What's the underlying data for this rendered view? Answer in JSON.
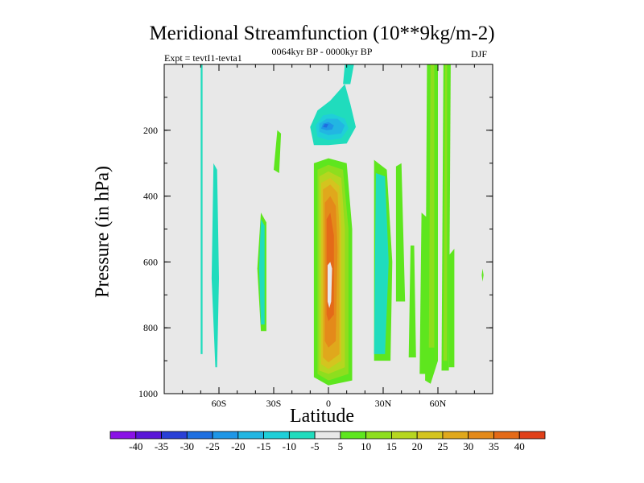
{
  "chart_data": {
    "type": "heatmap",
    "title": "Meridional Streamfunction (10**9kg/m-2)",
    "left_string": "Expt = tevtI1-tevta1",
    "center_string": "0064kyr BP - 0000kyr BP",
    "right_string": "DJF",
    "xlabel": "Latitude",
    "ylabel": "Pressure (in hPa)",
    "xlim": [
      -90,
      90
    ],
    "ylim": [
      1000,
      0
    ],
    "x_ticks": [
      {
        "value": -60,
        "label": "60S"
      },
      {
        "value": -30,
        "label": "30S"
      },
      {
        "value": 0,
        "label": "0"
      },
      {
        "value": 30,
        "label": "30N"
      },
      {
        "value": 60,
        "label": "60N"
      }
    ],
    "y_ticks": [
      {
        "value": 200,
        "label": "200"
      },
      {
        "value": 400,
        "label": "400"
      },
      {
        "value": 600,
        "label": "600"
      },
      {
        "value": 800,
        "label": "800"
      },
      {
        "value": 1000,
        "label": "1000"
      }
    ],
    "colorbar": {
      "labels": [
        "-40",
        "-35",
        "-30",
        "-25",
        "-20",
        "-15",
        "-10",
        "-5",
        "5",
        "10",
        "15",
        "20",
        "25",
        "30",
        "35",
        "40"
      ],
      "colors": [
        "#8a12e6",
        "#5a16d8",
        "#2a40d6",
        "#1f6fe0",
        "#1f96e6",
        "#22b6e2",
        "#1fcfd8",
        "#20dcbd",
        "#e8e8e8",
        "#5ee61e",
        "#8ede1e",
        "#b6d61f",
        "#d4c41f",
        "#e0a81c",
        "#e48a1a",
        "#e46a18",
        "#e0401a"
      ]
    },
    "regions": [
      {
        "color": "#5ee61e",
        "points": [
          [
            -8,
            950
          ],
          [
            -8,
            300
          ],
          [
            0,
            285
          ],
          [
            10,
            300
          ],
          [
            13,
            500
          ],
          [
            13,
            960
          ],
          [
            0,
            975
          ]
        ]
      },
      {
        "color": "#8ede1e",
        "points": [
          [
            -6,
            940
          ],
          [
            -6,
            320
          ],
          [
            0,
            305
          ],
          [
            8,
            320
          ],
          [
            11,
            500
          ],
          [
            11,
            940
          ],
          [
            0,
            960
          ]
        ]
      },
      {
        "color": "#b6d61f",
        "points": [
          [
            -5,
            930
          ],
          [
            -5,
            340
          ],
          [
            0,
            325
          ],
          [
            7,
            345
          ],
          [
            9,
            500
          ],
          [
            9,
            920
          ],
          [
            0,
            940
          ]
        ]
      },
      {
        "color": "#d4c41f",
        "points": [
          [
            -4,
            910
          ],
          [
            -4,
            360
          ],
          [
            1,
            345
          ],
          [
            6,
            370
          ],
          [
            7,
            500
          ],
          [
            7,
            900
          ],
          [
            0,
            925
          ]
        ]
      },
      {
        "color": "#e0a81c",
        "points": [
          [
            -3,
            890
          ],
          [
            -3,
            380
          ],
          [
            1,
            365
          ],
          [
            5,
            390
          ],
          [
            6,
            500
          ],
          [
            6,
            880
          ],
          [
            0,
            905
          ]
        ]
      },
      {
        "color": "#e48a1a",
        "points": [
          [
            -2,
            840
          ],
          [
            -2,
            420
          ],
          [
            1,
            400
          ],
          [
            4,
            430
          ],
          [
            5,
            560
          ],
          [
            4,
            840
          ],
          [
            0,
            860
          ]
        ]
      },
      {
        "color": "#e46a18",
        "points": [
          [
            -1,
            760
          ],
          [
            -1,
            470
          ],
          [
            1,
            450
          ],
          [
            3,
            520
          ],
          [
            3,
            760
          ],
          [
            0,
            780
          ]
        ]
      },
      {
        "color": "#e8e8e8",
        "points": [
          [
            -0.5,
            720
          ],
          [
            -0.5,
            610
          ],
          [
            1,
            600
          ],
          [
            2,
            620
          ],
          [
            1.5,
            720
          ],
          [
            0.5,
            740
          ]
        ]
      },
      {
        "color": "#20dcbd",
        "points": [
          [
            -8,
            245
          ],
          [
            -10,
            190
          ],
          [
            -6,
            140
          ],
          [
            1,
            110
          ],
          [
            9,
            60
          ],
          [
            12,
            120
          ],
          [
            15,
            190
          ],
          [
            10,
            240
          ],
          [
            0,
            245
          ]
        ]
      },
      {
        "color": "#1fcfd8",
        "points": [
          [
            -6,
            220
          ],
          [
            -7,
            185
          ],
          [
            -3,
            155
          ],
          [
            2,
            150
          ],
          [
            9,
            165
          ],
          [
            11,
            195
          ],
          [
            7,
            225
          ],
          [
            0,
            230
          ]
        ]
      },
      {
        "color": "#22b6e2",
        "points": [
          [
            -5,
            205
          ],
          [
            -5,
            180
          ],
          [
            -1,
            165
          ],
          [
            5,
            165
          ],
          [
            9,
            185
          ],
          [
            7,
            210
          ],
          [
            0,
            215
          ]
        ]
      },
      {
        "color": "#1f96e6",
        "points": [
          [
            -4,
            195
          ],
          [
            -3,
            180
          ],
          [
            0,
            175
          ],
          [
            3,
            185
          ],
          [
            2,
            198
          ],
          [
            -1,
            200
          ]
        ]
      },
      {
        "color": "#1f6fe0",
        "points": [
          [
            -3,
            190
          ],
          [
            -2,
            180
          ],
          [
            0,
            182
          ],
          [
            -1,
            192
          ]
        ]
      },
      {
        "color": "#20dcbd",
        "points": [
          [
            8,
            60
          ],
          [
            9,
            0
          ],
          [
            14,
            0
          ],
          [
            12,
            60
          ]
        ]
      },
      {
        "color": "#20dcbd",
        "points": [
          [
            -70,
            0
          ],
          [
            -69,
            0
          ],
          [
            -69,
            880
          ],
          [
            -70,
            880
          ]
        ]
      },
      {
        "color": "#20dcbd",
        "points": [
          [
            -62,
            920
          ],
          [
            -64,
            650
          ],
          [
            -63,
            300
          ],
          [
            -61,
            320
          ],
          [
            -60,
            650
          ],
          [
            -61,
            920
          ]
        ]
      },
      {
        "color": "#5ee61e",
        "points": [
          [
            -37,
            810
          ],
          [
            -39,
            620
          ],
          [
            -37,
            450
          ],
          [
            -34,
            480
          ],
          [
            -34,
            810
          ]
        ]
      },
      {
        "color": "#5ee61e",
        "points": [
          [
            -30,
            320
          ],
          [
            -28,
            200
          ],
          [
            -26,
            210
          ],
          [
            -27,
            330
          ]
        ]
      },
      {
        "color": "#20dcbd",
        "points": [
          [
            -37,
            790
          ],
          [
            -38,
            620
          ],
          [
            -37,
            470
          ],
          [
            -35,
            490
          ],
          [
            -35,
            790
          ]
        ]
      },
      {
        "color": "#5ee61e",
        "points": [
          [
            25,
            900
          ],
          [
            25,
            290
          ],
          [
            32,
            320
          ],
          [
            35,
            600
          ],
          [
            34,
            900
          ]
        ]
      },
      {
        "color": "#20dcbd",
        "points": [
          [
            25,
            880
          ],
          [
            26,
            330
          ],
          [
            31,
            340
          ],
          [
            33,
            600
          ],
          [
            31,
            880
          ]
        ]
      },
      {
        "color": "#20dcbd",
        "points": [
          [
            26,
            820
          ],
          [
            27,
            450
          ],
          [
            31,
            480
          ],
          [
            31,
            820
          ]
        ]
      },
      {
        "color": "#5ee61e",
        "points": [
          [
            37,
            720
          ],
          [
            37,
            310
          ],
          [
            40,
            300
          ],
          [
            42,
            720
          ]
        ]
      },
      {
        "color": "#5ee61e",
        "points": [
          [
            44,
            890
          ],
          [
            45,
            550
          ],
          [
            47,
            550
          ],
          [
            48,
            890
          ]
        ]
      },
      {
        "color": "#5ee61e",
        "points": [
          [
            50,
            940
          ],
          [
            51,
            450
          ],
          [
            55,
            470
          ],
          [
            55,
            940
          ]
        ]
      },
      {
        "color": "#5ee61e",
        "points": [
          [
            53,
            960
          ],
          [
            54,
            0
          ],
          [
            60,
            0
          ],
          [
            60,
            900
          ],
          [
            56,
            970
          ]
        ]
      },
      {
        "color": "#8ede1e",
        "points": [
          [
            55,
            860
          ],
          [
            56,
            0
          ],
          [
            58,
            0
          ],
          [
            58,
            860
          ]
        ]
      },
      {
        "color": "#5ee61e",
        "points": [
          [
            62,
            930
          ],
          [
            63,
            0
          ],
          [
            67,
            0
          ],
          [
            66,
            930
          ]
        ]
      },
      {
        "color": "#8ede1e",
        "points": [
          [
            63,
            900
          ],
          [
            64,
            0
          ],
          [
            65,
            0
          ],
          [
            65,
            900
          ]
        ]
      },
      {
        "color": "#5ee61e",
        "points": [
          [
            66,
            920
          ],
          [
            66,
            580
          ],
          [
            69,
            560
          ],
          [
            69,
            920
          ]
        ]
      },
      {
        "color": "#5ee61e",
        "points": [
          [
            84,
            640
          ],
          [
            84.5,
            620
          ],
          [
            85,
            640
          ],
          [
            84.5,
            660
          ]
        ]
      }
    ]
  }
}
